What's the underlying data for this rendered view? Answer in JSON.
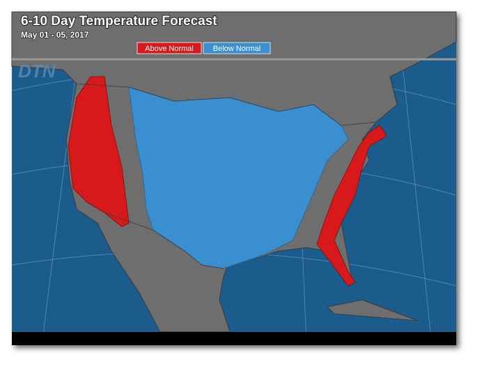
{
  "header": {
    "title": "6-10 Day Temperature Forecast",
    "subtitle": "May 01 - 05, 2017"
  },
  "legend": [
    {
      "label": "Above Normal",
      "color": "#d7191c"
    },
    {
      "label": "Below Normal",
      "color": "#3a8fd0"
    }
  ],
  "watermark": "DTN"
}
